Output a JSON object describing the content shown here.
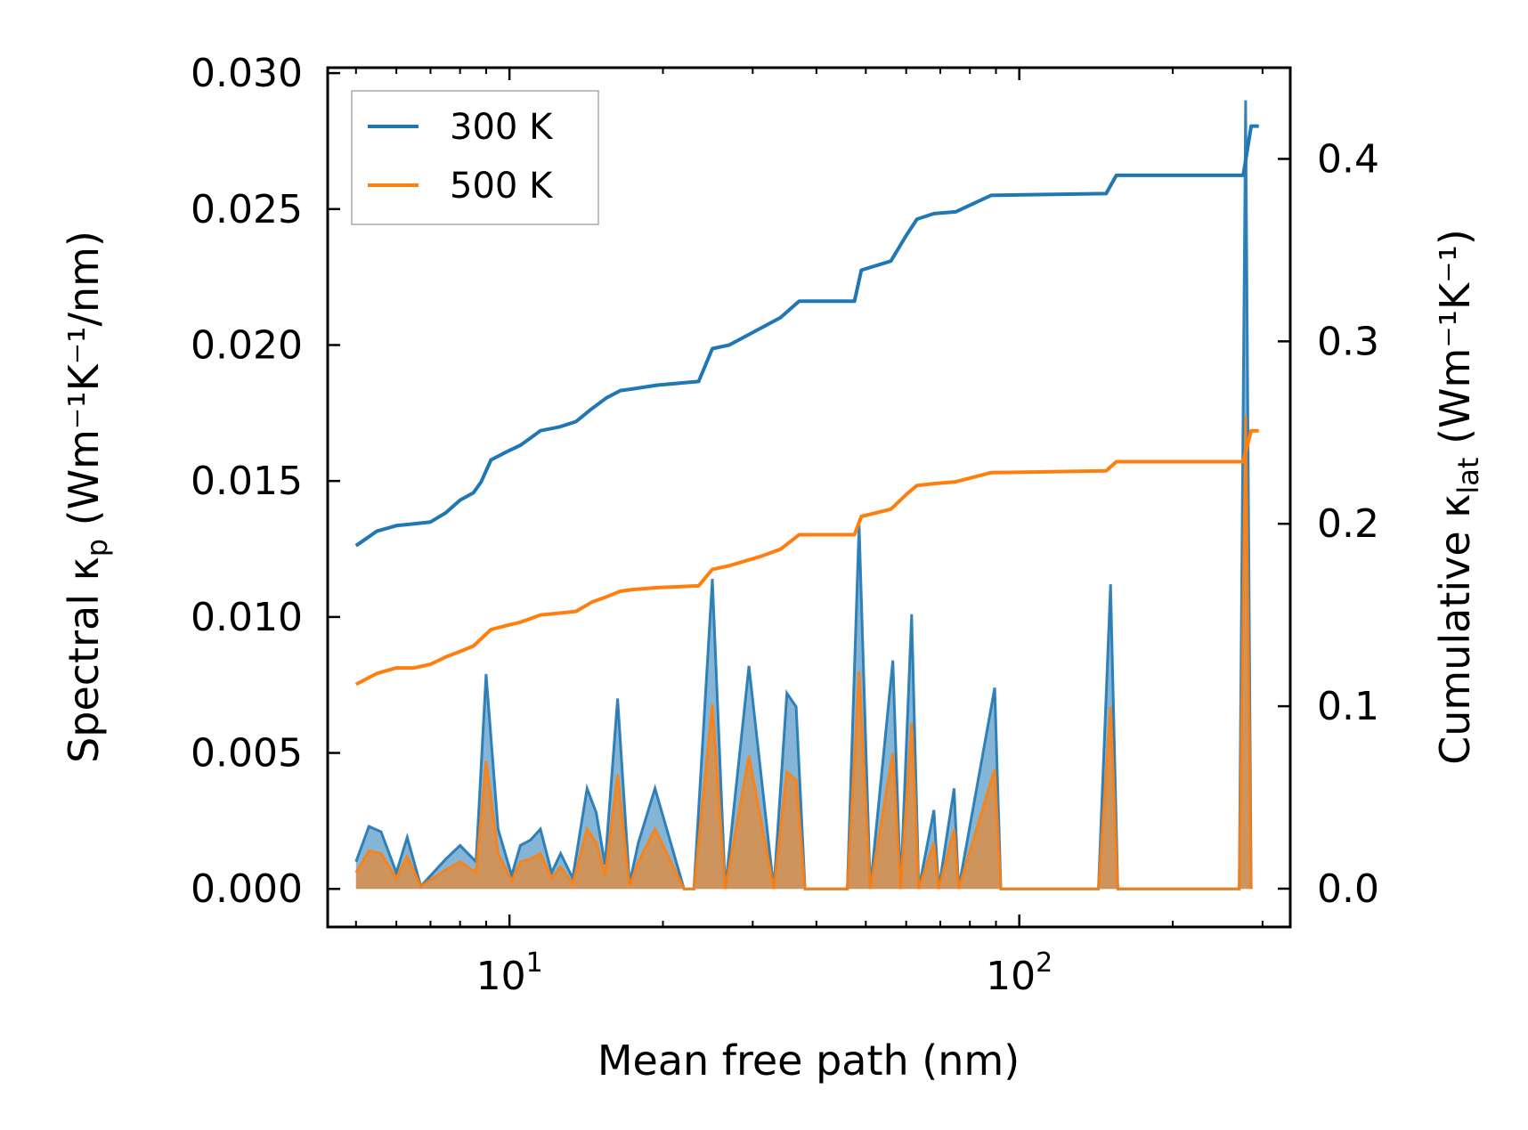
{
  "chart_data": {
    "type": "line",
    "xscale": "log",
    "xlim": [
      4.4,
      340
    ],
    "ylim": [
      -0.0014,
      0.0302
    ],
    "y2lim": [
      -0.021,
      0.45
    ],
    "xlabel": "Mean free path (nm)",
    "ylabel": {
      "main": "Spectral κ",
      "sub": "p",
      "units": " (Wm⁻¹K⁻¹/nm)"
    },
    "y2label": {
      "main": "Cumulative κ",
      "sub": "lat",
      "units": " (Wm⁻¹K⁻¹)"
    },
    "xticks": [
      {
        "value": 10,
        "base": "10",
        "exp": "1"
      },
      {
        "value": 100,
        "base": "10",
        "exp": "2"
      }
    ],
    "yticks": [
      {
        "value": 0.0,
        "label": "0.000"
      },
      {
        "value": 0.005,
        "label": "0.005"
      },
      {
        "value": 0.01,
        "label": "0.010"
      },
      {
        "value": 0.015,
        "label": "0.015"
      },
      {
        "value": 0.02,
        "label": "0.020"
      },
      {
        "value": 0.025,
        "label": "0.025"
      },
      {
        "value": 0.03,
        "label": "0.030"
      }
    ],
    "y2ticks": [
      {
        "value": 0.0,
        "label": "0.0"
      },
      {
        "value": 0.1,
        "label": "0.1"
      },
      {
        "value": 0.2,
        "label": "0.2"
      },
      {
        "value": 0.3,
        "label": "0.3"
      },
      {
        "value": 0.4,
        "label": "0.4"
      }
    ],
    "legend": {
      "position": "upper-left",
      "entries": [
        "300 K",
        "500 K"
      ]
    },
    "series": [
      {
        "name": "300 K",
        "color": "#1f77b4",
        "cumulative": [
          [
            5.0,
            0.188
          ],
          [
            5.5,
            0.196
          ],
          [
            6.0,
            0.199
          ],
          [
            6.5,
            0.2
          ],
          [
            7.0,
            0.201
          ],
          [
            7.5,
            0.206
          ],
          [
            8.0,
            0.213
          ],
          [
            8.5,
            0.217
          ],
          [
            8.8,
            0.223
          ],
          [
            9.2,
            0.235
          ],
          [
            9.8,
            0.239
          ],
          [
            10.5,
            0.243
          ],
          [
            11.0,
            0.247
          ],
          [
            11.5,
            0.251
          ],
          [
            12.5,
            0.253
          ],
          [
            13.5,
            0.256
          ],
          [
            14.5,
            0.263
          ],
          [
            15.5,
            0.269
          ],
          [
            16.5,
            0.273
          ],
          [
            17.5,
            0.274
          ],
          [
            19.5,
            0.276
          ],
          [
            23.5,
            0.278
          ],
          [
            25.0,
            0.296
          ],
          [
            27.0,
            0.298
          ],
          [
            31.0,
            0.307
          ],
          [
            34.0,
            0.313
          ],
          [
            37.0,
            0.322
          ],
          [
            47.5,
            0.322
          ],
          [
            49.0,
            0.339
          ],
          [
            56.0,
            0.344
          ],
          [
            60.0,
            0.358
          ],
          [
            63.0,
            0.367
          ],
          [
            68.0,
            0.37
          ],
          [
            75.0,
            0.371
          ],
          [
            88.0,
            0.38
          ],
          [
            148.0,
            0.381
          ],
          [
            155.0,
            0.391
          ],
          [
            275.0,
            0.391
          ],
          [
            285.0,
            0.418
          ],
          [
            295.0,
            0.418
          ]
        ],
        "spectral": [
          [
            5.0,
            0.001
          ],
          [
            5.3,
            0.0023
          ],
          [
            5.6,
            0.0021
          ],
          [
            6.0,
            0.0006
          ],
          [
            6.3,
            0.0019
          ],
          [
            6.7,
            0.0001
          ],
          [
            7.5,
            0.0011
          ],
          [
            8.0,
            0.0016
          ],
          [
            8.6,
            0.001
          ],
          [
            9.0,
            0.0079
          ],
          [
            9.5,
            0.0022
          ],
          [
            10.1,
            0.0005
          ],
          [
            10.5,
            0.0016
          ],
          [
            11.0,
            0.0018
          ],
          [
            11.5,
            0.0022
          ],
          [
            12.1,
            0.0006
          ],
          [
            12.6,
            0.0013
          ],
          [
            13.3,
            0.0004
          ],
          [
            14.2,
            0.0037
          ],
          [
            14.8,
            0.0028
          ],
          [
            15.4,
            0.0009
          ],
          [
            16.3,
            0.007
          ],
          [
            17.2,
            0.0002
          ],
          [
            17.9,
            0.0017
          ],
          [
            19.3,
            0.0037
          ],
          [
            22.0,
            0.0
          ],
          [
            23.0,
            0.0
          ],
          [
            25.0,
            0.0114
          ],
          [
            26.5,
            0.0
          ],
          [
            29.5,
            0.0082
          ],
          [
            33.0,
            0.0
          ],
          [
            35.0,
            0.0072
          ],
          [
            36.5,
            0.0067
          ],
          [
            38.0,
            0.0
          ],
          [
            46.0,
            0.0
          ],
          [
            48.5,
            0.0134
          ],
          [
            51.0,
            0.0
          ],
          [
            56.5,
            0.0084
          ],
          [
            58.5,
            0.0
          ],
          [
            61.5,
            0.0101
          ],
          [
            63.5,
            0.0
          ],
          [
            68.0,
            0.0029
          ],
          [
            69.5,
            0.0
          ],
          [
            74.5,
            0.0037
          ],
          [
            76.0,
            0.0
          ],
          [
            89.5,
            0.0074
          ],
          [
            92.0,
            0.0
          ],
          [
            143.0,
            0.0
          ],
          [
            151.0,
            0.0112
          ],
          [
            156.0,
            0.0
          ],
          [
            270.0,
            0.0
          ],
          [
            278.0,
            0.029
          ],
          [
            285.0,
            0.0
          ]
        ]
      },
      {
        "name": "500 K",
        "color": "#ff7f0e",
        "cumulative": [
          [
            5.0,
            0.112
          ],
          [
            5.5,
            0.118
          ],
          [
            6.0,
            0.121
          ],
          [
            6.5,
            0.121
          ],
          [
            7.0,
            0.123
          ],
          [
            7.5,
            0.127
          ],
          [
            8.0,
            0.13
          ],
          [
            8.5,
            0.133
          ],
          [
            8.8,
            0.137
          ],
          [
            9.2,
            0.142
          ],
          [
            9.8,
            0.144
          ],
          [
            10.5,
            0.146
          ],
          [
            11.0,
            0.148
          ],
          [
            11.5,
            0.15
          ],
          [
            12.5,
            0.151
          ],
          [
            13.5,
            0.152
          ],
          [
            14.5,
            0.157
          ],
          [
            15.5,
            0.16
          ],
          [
            16.5,
            0.163
          ],
          [
            17.5,
            0.164
          ],
          [
            19.5,
            0.165
          ],
          [
            23.5,
            0.166
          ],
          [
            25.0,
            0.175
          ],
          [
            27.0,
            0.177
          ],
          [
            31.0,
            0.182
          ],
          [
            34.0,
            0.186
          ],
          [
            37.0,
            0.194
          ],
          [
            47.5,
            0.194
          ],
          [
            49.0,
            0.204
          ],
          [
            56.0,
            0.208
          ],
          [
            60.0,
            0.216
          ],
          [
            63.0,
            0.221
          ],
          [
            68.0,
            0.222
          ],
          [
            75.0,
            0.223
          ],
          [
            88.0,
            0.228
          ],
          [
            148.0,
            0.229
          ],
          [
            155.0,
            0.234
          ],
          [
            275.0,
            0.234
          ],
          [
            285.0,
            0.251
          ],
          [
            295.0,
            0.251
          ]
        ],
        "spectral": [
          [
            5.0,
            0.0006
          ],
          [
            5.3,
            0.0014
          ],
          [
            5.6,
            0.0013
          ],
          [
            6.0,
            0.0004
          ],
          [
            6.3,
            0.0012
          ],
          [
            6.7,
            0.0001
          ],
          [
            7.5,
            0.0007
          ],
          [
            8.0,
            0.001
          ],
          [
            8.6,
            0.0006
          ],
          [
            9.0,
            0.0047
          ],
          [
            9.5,
            0.0013
          ],
          [
            10.1,
            0.0003
          ],
          [
            10.5,
            0.001
          ],
          [
            11.0,
            0.0011
          ],
          [
            11.5,
            0.0013
          ],
          [
            12.1,
            0.0004
          ],
          [
            12.6,
            0.0008
          ],
          [
            13.3,
            0.0002
          ],
          [
            14.2,
            0.0022
          ],
          [
            14.8,
            0.0017
          ],
          [
            15.4,
            0.0005
          ],
          [
            16.3,
            0.0042
          ],
          [
            17.2,
            0.0001
          ],
          [
            17.9,
            0.001
          ],
          [
            19.3,
            0.0022
          ],
          [
            22.0,
            0.0
          ],
          [
            23.0,
            0.0
          ],
          [
            25.0,
            0.0068
          ],
          [
            26.5,
            0.0
          ],
          [
            29.5,
            0.0049
          ],
          [
            33.0,
            0.0
          ],
          [
            35.0,
            0.0043
          ],
          [
            36.5,
            0.004
          ],
          [
            38.0,
            0.0
          ],
          [
            46.0,
            0.0
          ],
          [
            48.5,
            0.008
          ],
          [
            51.0,
            0.0
          ],
          [
            56.5,
            0.005
          ],
          [
            58.5,
            0.0
          ],
          [
            61.5,
            0.0061
          ],
          [
            63.5,
            0.0
          ],
          [
            68.0,
            0.0017
          ],
          [
            69.5,
            0.0
          ],
          [
            74.5,
            0.0022
          ],
          [
            76.0,
            0.0
          ],
          [
            89.5,
            0.0044
          ],
          [
            92.0,
            0.0
          ],
          [
            143.0,
            0.0
          ],
          [
            151.0,
            0.0067
          ],
          [
            156.0,
            0.0
          ],
          [
            270.0,
            0.0
          ],
          [
            278.0,
            0.0174
          ],
          [
            285.0,
            0.0
          ]
        ]
      }
    ]
  }
}
